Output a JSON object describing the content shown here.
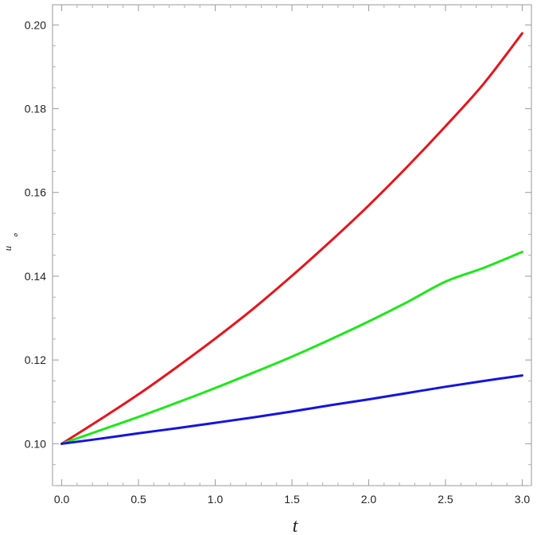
{
  "chart_data": {
    "type": "line",
    "title": "",
    "xlabel": "t",
    "ylabel": "u",
    "ylabel_sub": "∘",
    "xlim": [
      -0.06,
      3.06
    ],
    "ylim": [
      0.09,
      0.2048
    ],
    "x_ticks": [
      0.0,
      0.5,
      1.0,
      1.5,
      2.0,
      2.5,
      3.0
    ],
    "x_tick_labels": [
      "0.0",
      "0.5",
      "1.0",
      "1.5",
      "2.0",
      "2.5",
      "3.0"
    ],
    "y_ticks": [
      0.1,
      0.12,
      0.14,
      0.16,
      0.18,
      0.2
    ],
    "y_tick_labels": [
      "0.10",
      "0.12",
      "0.14",
      "0.16",
      "0.18",
      "0.20"
    ],
    "grid": false,
    "legend": "none",
    "x": [
      0.0,
      0.25,
      0.5,
      0.75,
      1.0,
      1.25,
      1.5,
      1.75,
      2.0,
      2.25,
      2.5,
      2.75,
      3.0
    ],
    "series": [
      {
        "color": "#e8141c",
        "values": [
          0.1,
          0.1058,
          0.1118,
          0.1183,
          0.1251,
          0.1323,
          0.1401,
          0.1483,
          0.1569,
          0.1661,
          0.1758,
          0.186,
          0.198
        ]
      },
      {
        "color": "#1ee81a",
        "values": [
          0.1,
          0.1032,
          0.1064,
          0.1098,
          0.1133,
          0.117,
          0.1208,
          0.1249,
          0.1292,
          0.1338,
          0.1387,
          0.142,
          0.1458
        ]
      },
      {
        "color": "#1414e0",
        "values": [
          0.1,
          0.1012,
          0.1025,
          0.1037,
          0.105,
          0.1063,
          0.1077,
          0.1092,
          0.1106,
          0.1121,
          0.1136,
          0.115,
          0.1163
        ]
      }
    ]
  }
}
